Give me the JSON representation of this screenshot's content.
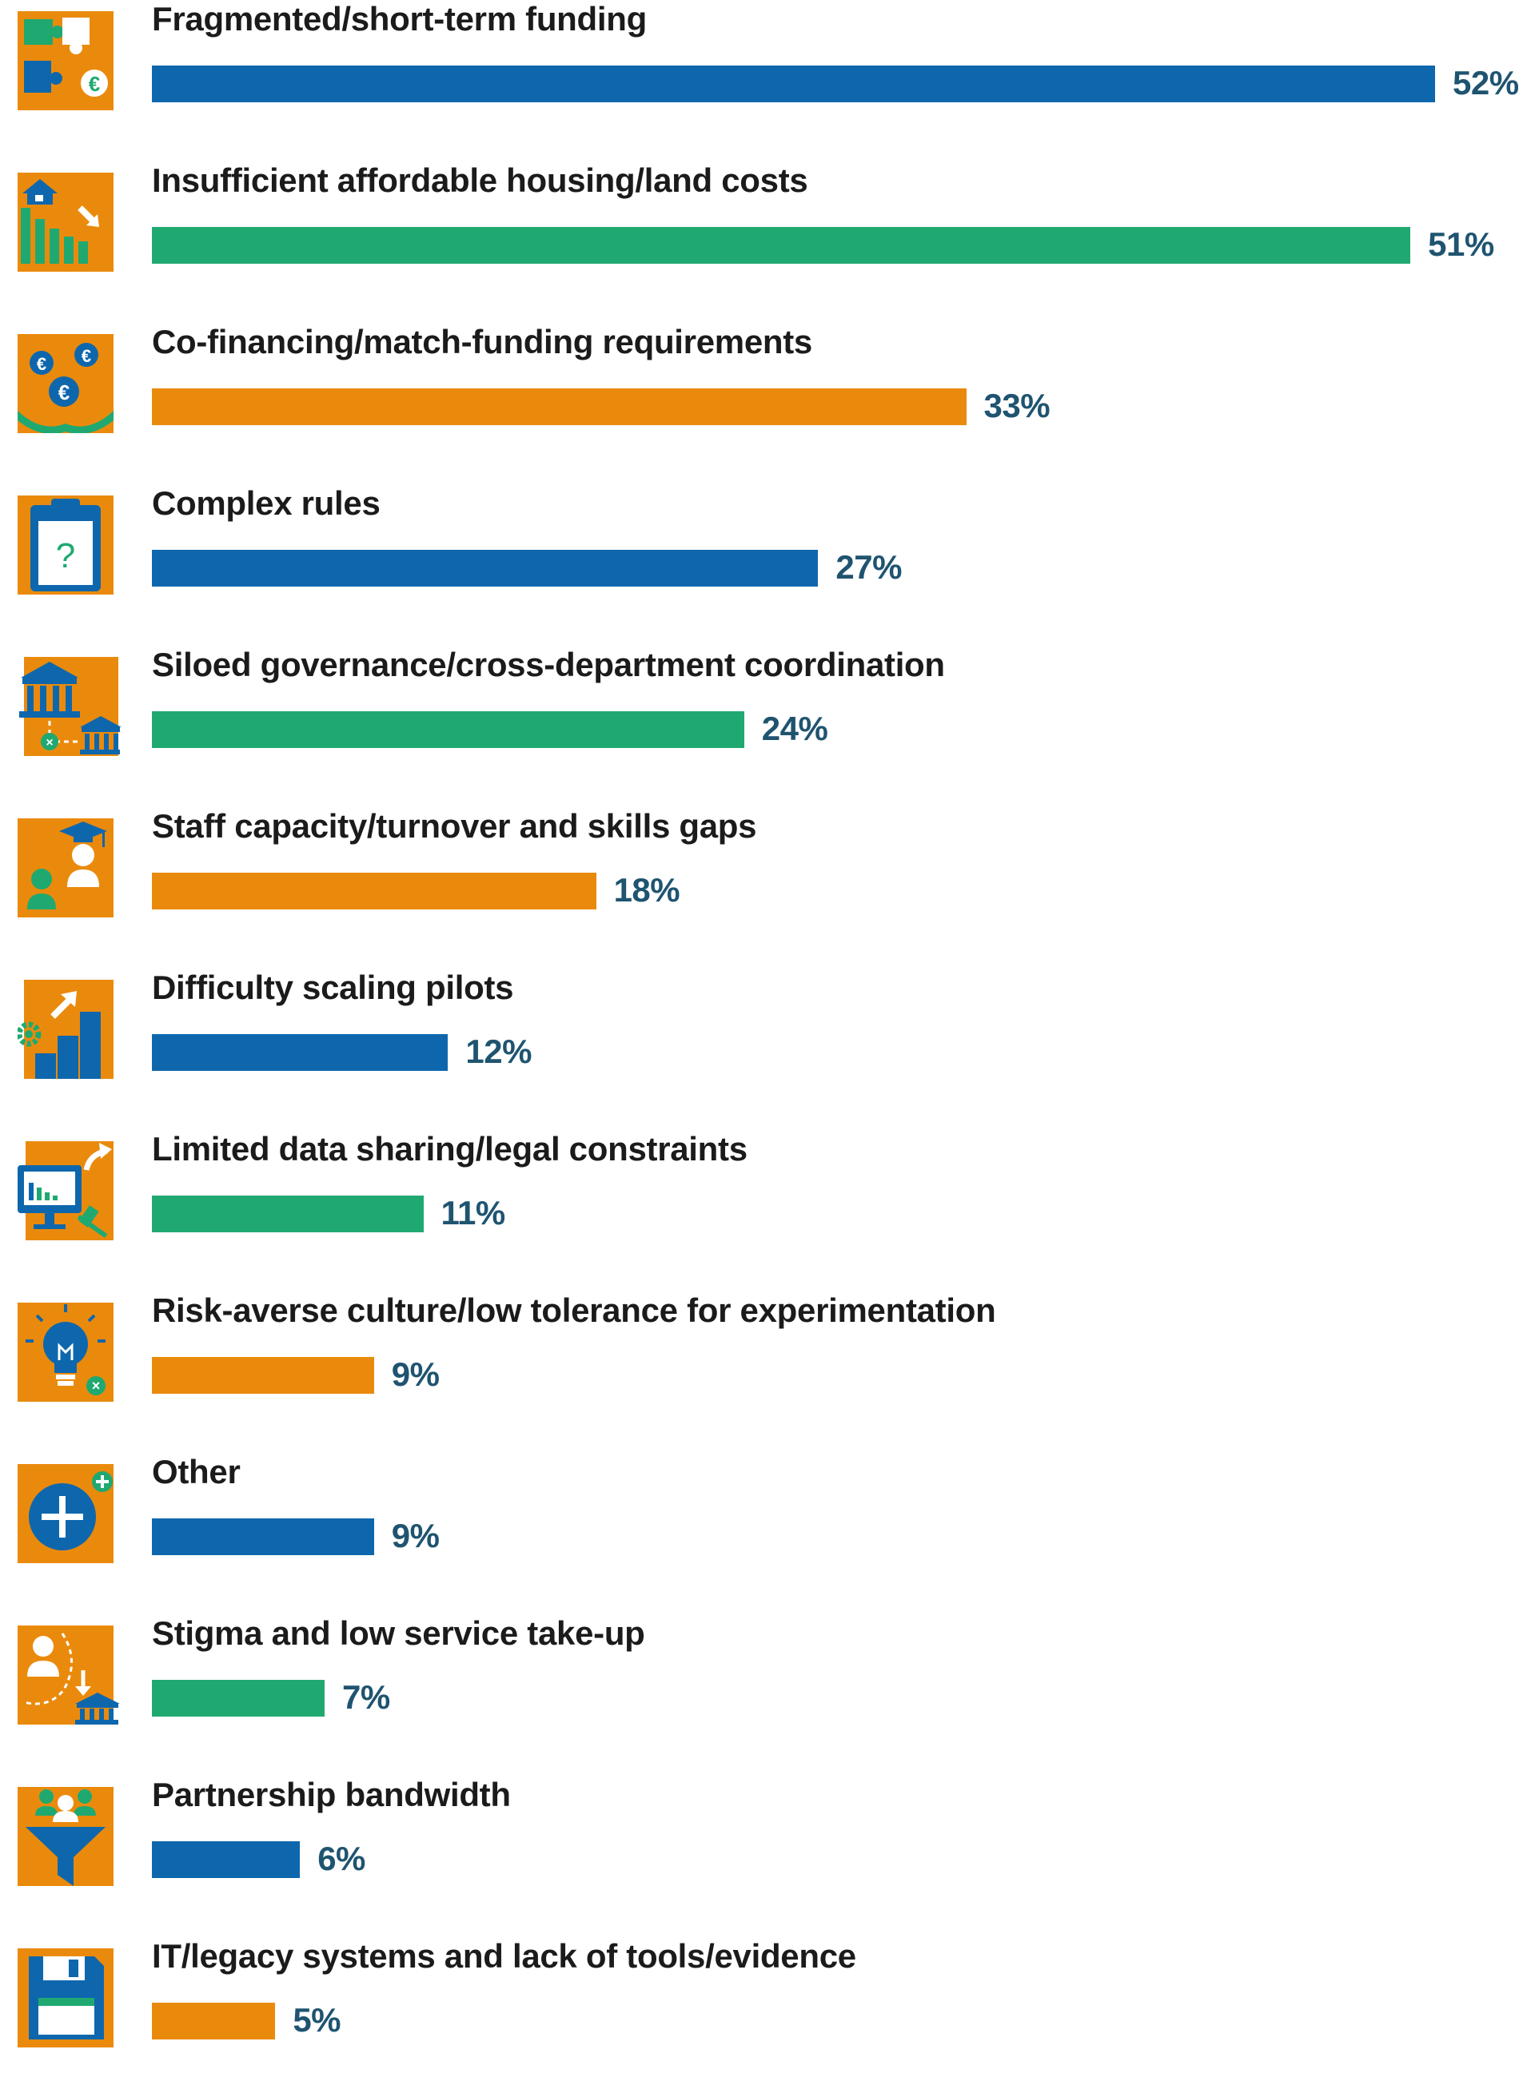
{
  "chart_data": {
    "type": "bar",
    "orientation": "horizontal",
    "categories": [
      "Fragmented/short-term funding",
      "Insufficient affordable housing/land costs",
      "Co-financing/match-funding requirements",
      "Complex rules",
      "Siloed governance/cross-department coordination",
      "Staff capacity/turnover and skills gaps",
      "Difficulty scaling pilots",
      "Limited data sharing/legal constraints",
      "Risk-averse culture/low tolerance for experimentation",
      "Other",
      "Stigma and low service take-up",
      "Partnership bandwidth",
      "IT/legacy systems and lack of tools/evidence"
    ],
    "values": [
      52,
      51,
      33,
      27,
      24,
      18,
      12,
      11,
      9,
      9,
      7,
      6,
      5
    ],
    "value_labels": [
      "52%",
      "51%",
      "33%",
      "27%",
      "24%",
      "18%",
      "12%",
      "11%",
      "9%",
      "9%",
      "7%",
      "6%",
      "5%"
    ],
    "unit": "%",
    "bar_colors": [
      "#0e67ad",
      "#1fa971",
      "#ea8a0c",
      "#0e67ad",
      "#1fa971",
      "#ea8a0c",
      "#0e67ad",
      "#1fa971",
      "#ea8a0c",
      "#0e67ad",
      "#1fa971",
      "#0e67ad",
      "#ea8a0c"
    ],
    "icons": [
      "puzzle-euro-icon",
      "housing-cost-icon",
      "euro-coins-hands-icon",
      "clipboard-question-icon",
      "government-buildings-icon",
      "staff-graduate-icon",
      "scaling-growth-icon",
      "data-monitor-gavel-icon",
      "lightbulb-risk-icon",
      "plus-circle-icon",
      "person-stigma-icon",
      "partnership-funnel-icon",
      "floppy-disk-icon"
    ],
    "title": "",
    "xlabel": "",
    "ylabel": "",
    "xlim": [
      0,
      52
    ],
    "grid": false,
    "legend": "none"
  },
  "colors": {
    "orange": "#ea8a0c",
    "blue": "#0e67ad",
    "green": "#1fa971",
    "label_text": "#1b1b1b",
    "value_text": "#1f5470"
  }
}
